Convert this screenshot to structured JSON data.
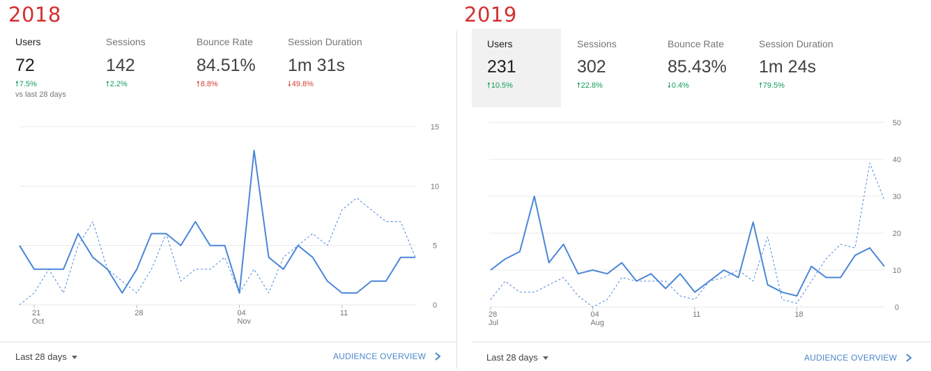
{
  "panels": [
    {
      "year": "2018",
      "metrics": [
        {
          "label": "Users",
          "value": "72",
          "change": "7.5%",
          "direction": "up",
          "selected": false
        },
        {
          "label": "Sessions",
          "value": "142",
          "change": "2.2%",
          "direction": "up",
          "selected": false
        },
        {
          "label": "Bounce Rate",
          "value": "84.51%",
          "change": "8.8%",
          "direction": "up-bad",
          "selected": false
        },
        {
          "label": "Session Duration",
          "value": "1m 31s",
          "change": "49.8%",
          "direction": "down-bad",
          "selected": false
        }
      ],
      "comparison_note": "vs last 28 days",
      "footer": {
        "date_range": "Last 28 days",
        "link": "AUDIENCE OVERVIEW"
      }
    },
    {
      "year": "2019",
      "metrics": [
        {
          "label": "Users",
          "value": "231",
          "change": "10.5%",
          "direction": "up",
          "selected": true
        },
        {
          "label": "Sessions",
          "value": "302",
          "change": "22.8%",
          "direction": "up",
          "selected": false
        },
        {
          "label": "Bounce Rate",
          "value": "85.43%",
          "change": "0.4%",
          "direction": "down-good",
          "selected": false
        },
        {
          "label": "Session Duration",
          "value": "1m 24s",
          "change": "79.5%",
          "direction": "up",
          "selected": false
        }
      ],
      "footer": {
        "date_range": "Last 28 days",
        "link": "AUDIENCE OVERVIEW"
      }
    }
  ],
  "colors": {
    "line": "#4a86d8",
    "grid": "#e8e8e8",
    "up": "#0f9d58",
    "down": "#d23f31",
    "year": "#d32f2f"
  },
  "chart_data": [
    {
      "type": "line",
      "ylim": [
        0,
        15
      ],
      "yticks": [
        0,
        5,
        10,
        15
      ],
      "x_ticks": [
        {
          "index": 1,
          "day": "21",
          "month": "Oct"
        },
        {
          "index": 8,
          "day": "28",
          "month": ""
        },
        {
          "index": 15,
          "day": "04",
          "month": "Nov"
        },
        {
          "index": 22,
          "day": "11",
          "month": ""
        }
      ],
      "series": [
        {
          "style": "solid",
          "values": [
            5,
            3,
            3,
            3,
            6,
            4,
            3,
            1,
            3,
            6,
            6,
            5,
            7,
            5,
            5,
            1,
            13,
            4,
            3,
            5,
            4,
            2,
            1,
            1,
            2,
            2,
            4,
            4
          ]
        },
        {
          "style": "dashed",
          "values": [
            0,
            1,
            3,
            1,
            5,
            7,
            3,
            2,
            1,
            3,
            6,
            2,
            3,
            3,
            4,
            1,
            3,
            1,
            4,
            5,
            6,
            5,
            8,
            9,
            8,
            7,
            7,
            4
          ]
        }
      ]
    },
    {
      "type": "line",
      "ylim": [
        0,
        50
      ],
      "yticks": [
        0,
        10,
        20,
        30,
        40,
        50
      ],
      "x_ticks": [
        {
          "index": 0,
          "day": "28",
          "month": "Jul"
        },
        {
          "index": 7,
          "day": "04",
          "month": "Aug"
        },
        {
          "index": 14,
          "day": "11",
          "month": ""
        },
        {
          "index": 21,
          "day": "18",
          "month": ""
        }
      ],
      "series": [
        {
          "style": "solid",
          "values": [
            10,
            13,
            15,
            30,
            12,
            17,
            9,
            10,
            9,
            12,
            7,
            9,
            5,
            9,
            4,
            7,
            10,
            8,
            23,
            6,
            4,
            3,
            11,
            8,
            8,
            14,
            16,
            11
          ]
        },
        {
          "style": "dashed",
          "values": [
            2,
            7,
            4,
            4,
            6,
            8,
            3,
            0,
            2,
            8,
            7,
            7,
            7,
            3,
            2,
            7,
            8,
            10,
            7,
            19,
            2,
            1,
            7,
            13,
            17,
            16,
            39,
            29
          ]
        }
      ]
    }
  ]
}
